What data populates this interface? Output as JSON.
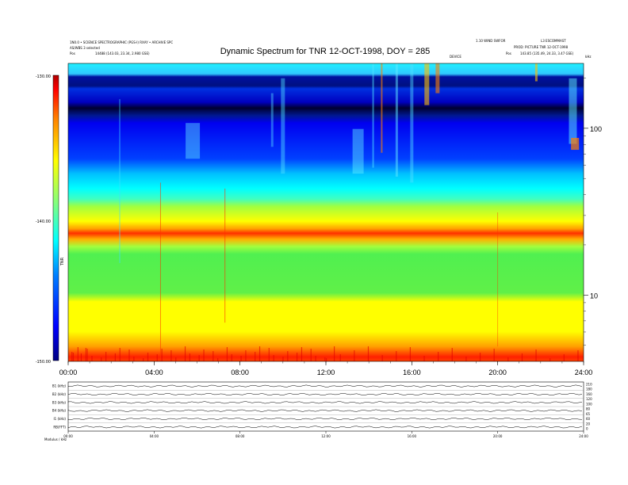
{
  "header": {
    "title": "Dynamic Spectrum for TNR 12-OCT-1998, DOY = 285",
    "left_line1": "1N0.0 • SCIENCE SPECTROGRAPHIC (PGS-I) RXAY • ARCHIVE SPC",
    "left_line2": "AS/WBS 3 selected",
    "left_line3_label": "Pos",
    "left_line3_value": "14488 (143.03, 23.34, 2.980 GSE)",
    "right_line1": "1.10 WIND SWFOR",
    "right_line1b": "L3 ESCOMMAST",
    "right_line2": "PROD: PICTURE TNR 12-OCT-1998",
    "right_line3_label": "Pos",
    "right_line3_value": "143.85 (135.49, 24.33, 3.47 GSE)",
    "right_unit_small": "DEVICE",
    "right_khz_small": "kHz"
  },
  "chart_data": {
    "type": "heatmap",
    "title": "Dynamic Spectrum for TNR 12-OCT-1998, DOY = 285",
    "x_tick_labels": [
      "00:00",
      "04:00",
      "08:00",
      "12:00",
      "16:00",
      "20:00",
      "24:00"
    ],
    "x_range_hours": [
      0,
      24
    ],
    "y_scale": "log",
    "y_tick_labels": [
      "100",
      "10"
    ],
    "y_tick_values_khz": [
      100,
      10
    ],
    "y_range_khz": [
      4,
      245
    ],
    "colorbar": {
      "tick_labels": [
        "-130.00",
        "-140.00",
        "-150.00"
      ],
      "range_db": [
        -150,
        -130
      ],
      "label": "TNR",
      "colors": [
        "#000080",
        "#0000ff",
        "#0080ff",
        "#00ffff",
        "#80ff80",
        "#ffff00",
        "#ff8000",
        "#ff0000",
        "#a00000"
      ]
    },
    "bands": [
      {
        "from_khz": 180,
        "to_khz": 245,
        "level": "cyan"
      },
      {
        "from_khz": 125,
        "to_khz": 175,
        "level": "dark-blue"
      },
      {
        "from_khz": 60,
        "to_khz": 120,
        "level": "blue"
      },
      {
        "from_khz": 40,
        "to_khz": 60,
        "level": "cyan"
      },
      {
        "from_khz": 27,
        "to_khz": 38,
        "level": "yellow-green"
      },
      {
        "from_khz": 20,
        "to_khz": 26,
        "level": "orange-red"
      },
      {
        "from_khz": 11,
        "to_khz": 20,
        "level": "green"
      },
      {
        "from_khz": 5,
        "to_khz": 11,
        "level": "yellow"
      },
      {
        "from_khz": 4,
        "to_khz": 5,
        "level": "orange-red"
      }
    ]
  },
  "subpanel": {
    "row_labels": [
      "B1 (kHz)",
      "B2 (kHz)",
      "B3 (kHz)",
      "B4 (kHz)",
      "I1 (kHz)",
      "RB(FFT)"
    ],
    "x_tick_labels": [
      "00:00",
      "04:00",
      "08:00",
      "12:00",
      "16:00",
      "20:00",
      "24:00"
    ],
    "right_tick_labels": [
      "210",
      "180",
      "160",
      "120",
      "100",
      "80",
      "65",
      "60",
      "20",
      "0"
    ],
    "footer_note": "Modulus / kHz"
  }
}
